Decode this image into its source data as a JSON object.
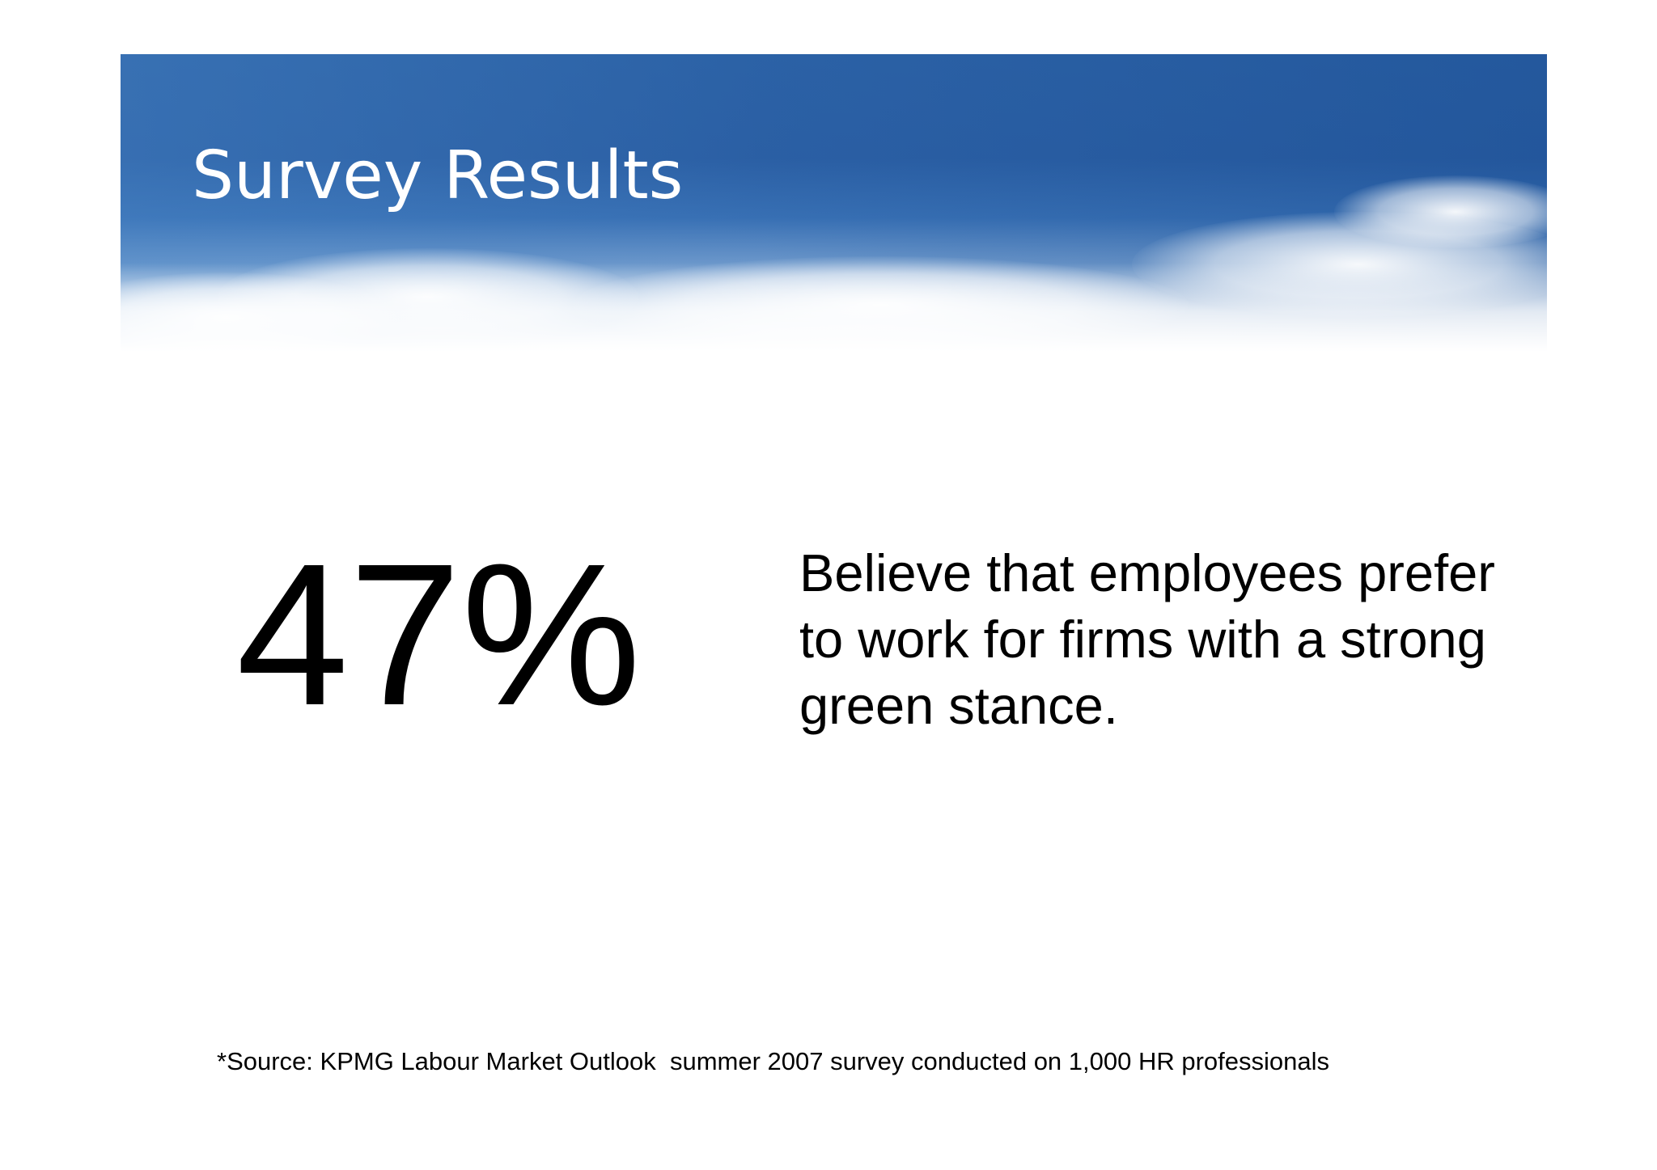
{
  "slide": {
    "title": "Survey Results",
    "stat_value": "47%",
    "stat_description": "Believe that employees prefer to work for firms with a strong green stance.",
    "source_note": "*Source: KPMG Labour Market Outlook  summer 2007 survey conducted on 1,000 HR professionals"
  },
  "colors": {
    "banner_sky": "#2b5fa4",
    "title_text": "#ffffff",
    "body_text": "#000000",
    "background": "#ffffff"
  }
}
